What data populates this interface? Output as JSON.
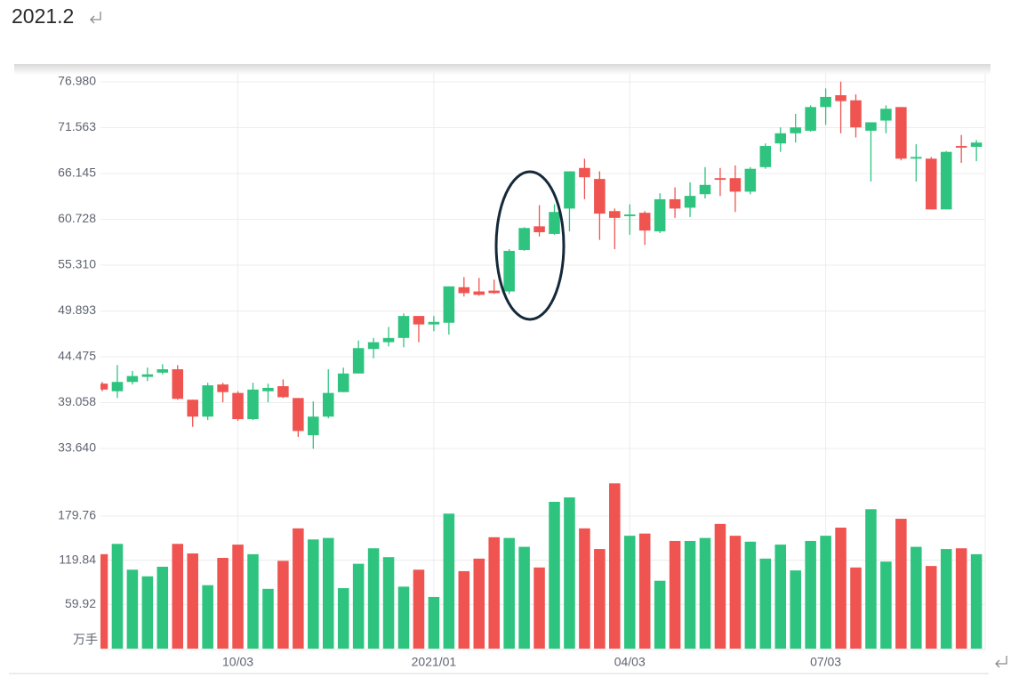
{
  "heading": "2021.2",
  "chart_data": {
    "type": "candlestick",
    "categories": [
      null,
      null,
      null,
      null,
      null,
      null,
      null,
      null,
      null,
      "10/03",
      null,
      null,
      null,
      null,
      null,
      null,
      null,
      null,
      null,
      null,
      null,
      null,
      "2021/01",
      null,
      null,
      null,
      null,
      null,
      null,
      null,
      null,
      null,
      null,
      null,
      null,
      "04/03",
      null,
      null,
      null,
      null,
      null,
      null,
      null,
      null,
      null,
      null,
      null,
      null,
      "07/03",
      null,
      null,
      null,
      null,
      null,
      null,
      null,
      null,
      null,
      null
    ],
    "open": [
      41.3,
      40.4,
      41.5,
      42.1,
      42.6,
      43.0,
      39.4,
      37.4,
      41.2,
      40.2,
      37.1,
      40.4,
      41.0,
      39.6,
      35.2,
      37.4,
      40.3,
      42.5,
      45.4,
      46.2,
      46.7,
      49.3,
      48.3,
      48.5,
      52.7,
      52.2,
      52.3,
      52.2,
      57.1,
      59.9,
      59.0,
      62.0,
      66.8,
      65.5,
      61.7,
      61.1,
      61.5,
      59.3,
      63.1,
      62.1,
      63.7,
      65.6,
      65.6,
      64.0,
      66.9,
      69.7,
      70.9,
      71.2,
      74.0,
      75.4,
      74.8,
      71.2,
      72.4,
      74.0,
      67.9,
      67.9,
      61.9,
      69.4,
      69.3
    ],
    "high": [
      41.5,
      43.5,
      42.8,
      43.2,
      43.6,
      43.5,
      39.4,
      41.4,
      41.4,
      40.4,
      41.4,
      41.3,
      41.8,
      39.6,
      39.2,
      43.0,
      43.2,
      46.4,
      46.7,
      48.0,
      49.6,
      49.3,
      49.3,
      52.8,
      53.9,
      53.8,
      53.6,
      57.2,
      59.8,
      62.4,
      62.5,
      66.4,
      67.9,
      66.4,
      62.0,
      62.5,
      61.7,
      63.8,
      64.5,
      65.1,
      66.9,
      66.8,
      67.1,
      66.9,
      69.7,
      71.6,
      73.2,
      74.2,
      76.2,
      77.0,
      75.5,
      72.2,
      74.2,
      74.0,
      69.6,
      68.1,
      68.8,
      70.7,
      70.1
    ],
    "low": [
      40.4,
      39.6,
      41.2,
      41.6,
      42.4,
      39.4,
      36.2,
      37.0,
      39.1,
      36.9,
      37.0,
      39.1,
      39.6,
      35.0,
      33.6,
      37.2,
      40.3,
      42.5,
      44.3,
      45.7,
      45.6,
      46.2,
      47.5,
      47.1,
      51.6,
      51.7,
      51.9,
      51.9,
      57.0,
      58.7,
      58.9,
      59.3,
      63.1,
      58.3,
      57.2,
      58.9,
      57.7,
      59.1,
      60.9,
      61.0,
      63.2,
      63.5,
      61.6,
      63.7,
      66.7,
      68.7,
      69.8,
      71.1,
      71.9,
      70.9,
      70.4,
      65.2,
      70.9,
      67.7,
      65.2,
      61.9,
      61.9,
      67.4,
      67.6
    ],
    "close": [
      40.6,
      41.5,
      42.2,
      42.4,
      43.0,
      39.5,
      37.4,
      41.1,
      40.3,
      37.1,
      40.6,
      40.8,
      39.7,
      35.7,
      37.4,
      40.2,
      42.5,
      45.5,
      46.2,
      46.7,
      49.3,
      48.3,
      48.6,
      52.8,
      52.0,
      51.8,
      52.0,
      57.0,
      59.7,
      59.2,
      61.6,
      66.4,
      65.7,
      61.4,
      60.9,
      61.3,
      59.4,
      63.1,
      62.0,
      63.5,
      64.8,
      65.4,
      64.0,
      66.7,
      69.4,
      70.9,
      71.6,
      74.0,
      75.2,
      74.7,
      71.6,
      72.2,
      73.8,
      67.9,
      68.1,
      61.9,
      68.7,
      69.2,
      69.8
    ],
    "up_color": "#2ec47f",
    "down_color": "#ef5451",
    "ylim": [
      33.64,
      76.98
    ],
    "yticks": [
      {
        "value": 33.64,
        "label": "33.640"
      },
      {
        "value": 39.058,
        "label": "39.058"
      },
      {
        "value": 44.475,
        "label": "44.475"
      },
      {
        "value": 49.893,
        "label": "49.893"
      },
      {
        "value": 55.31,
        "label": "55.310"
      },
      {
        "value": 60.728,
        "label": "60.728"
      },
      {
        "value": 66.145,
        "label": "66.145"
      },
      {
        "value": 71.563,
        "label": "71.563"
      },
      {
        "value": 76.98,
        "label": "76.980"
      }
    ],
    "volume": {
      "unit_label": "万手",
      "values": [
        128,
        142,
        107,
        98,
        111,
        142,
        129,
        86,
        123,
        141,
        128,
        81,
        119,
        163,
        148,
        150,
        82,
        115,
        136,
        124,
        84,
        107,
        70,
        183,
        105,
        122,
        151,
        150,
        138,
        110,
        199,
        205,
        163,
        135,
        224,
        153,
        156,
        92,
        146,
        146,
        150,
        169,
        153,
        145,
        122,
        141,
        106,
        146,
        153,
        164,
        110,
        189,
        118,
        176,
        138,
        112,
        135,
        136,
        128
      ],
      "ylim": [
        0,
        240
      ],
      "yticks": [
        59.92,
        119.84,
        179.76
      ]
    },
    "grid": true
  }
}
